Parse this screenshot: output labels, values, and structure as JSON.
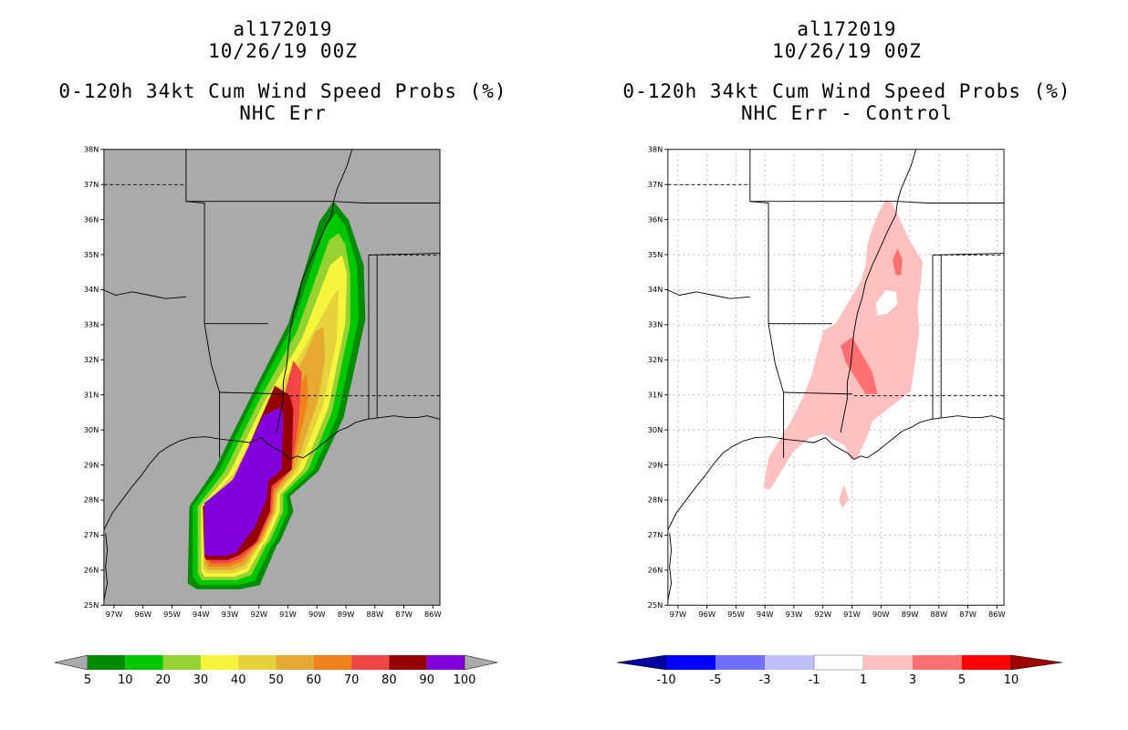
{
  "panels": [
    {
      "storm_id": "al172019",
      "datetime": "10/26/19 00Z",
      "title": "0-120h 34kt Cum Wind Speed Probs (%)",
      "subtitle": "NHC Err",
      "background": "#aaaaaa"
    },
    {
      "storm_id": "al172019",
      "datetime": "10/26/19 00Z",
      "title": "0-120h 34kt Cum Wind Speed Probs (%)",
      "subtitle": "NHC Err - Control",
      "background": "#ffffff"
    }
  ],
  "map": {
    "lat_labels": [
      "25N",
      "26N",
      "27N",
      "28N",
      "29N",
      "30N",
      "31N",
      "32N",
      "33N",
      "34N",
      "35N",
      "36N",
      "37N",
      "38N"
    ],
    "lon_labels": [
      "97W",
      "96W",
      "95W",
      "94W",
      "93W",
      "92W",
      "91W",
      "90W",
      "89W",
      "88W",
      "87W",
      "86W"
    ]
  },
  "colorbar_left": {
    "labels": [
      "5",
      "10",
      "20",
      "30",
      "40",
      "50",
      "60",
      "70",
      "80",
      "90",
      "100"
    ],
    "colors": [
      "#008c00",
      "#00c800",
      "#96d232",
      "#f5f53c",
      "#e6d23c",
      "#e6aa32",
      "#f0821e",
      "#f04646",
      "#960000",
      "#8200dc"
    ]
  },
  "colorbar_right": {
    "labels": [
      "-10",
      "-5",
      "-3",
      "-1",
      "1",
      "3",
      "5",
      "10"
    ],
    "colors": [
      "#0000a0",
      "#0000ff",
      "#7070ff",
      "#c0c0ff",
      "#ffffff",
      "#ffc0c0",
      "#ff7070",
      "#ff0000",
      "#a00000"
    ]
  }
}
